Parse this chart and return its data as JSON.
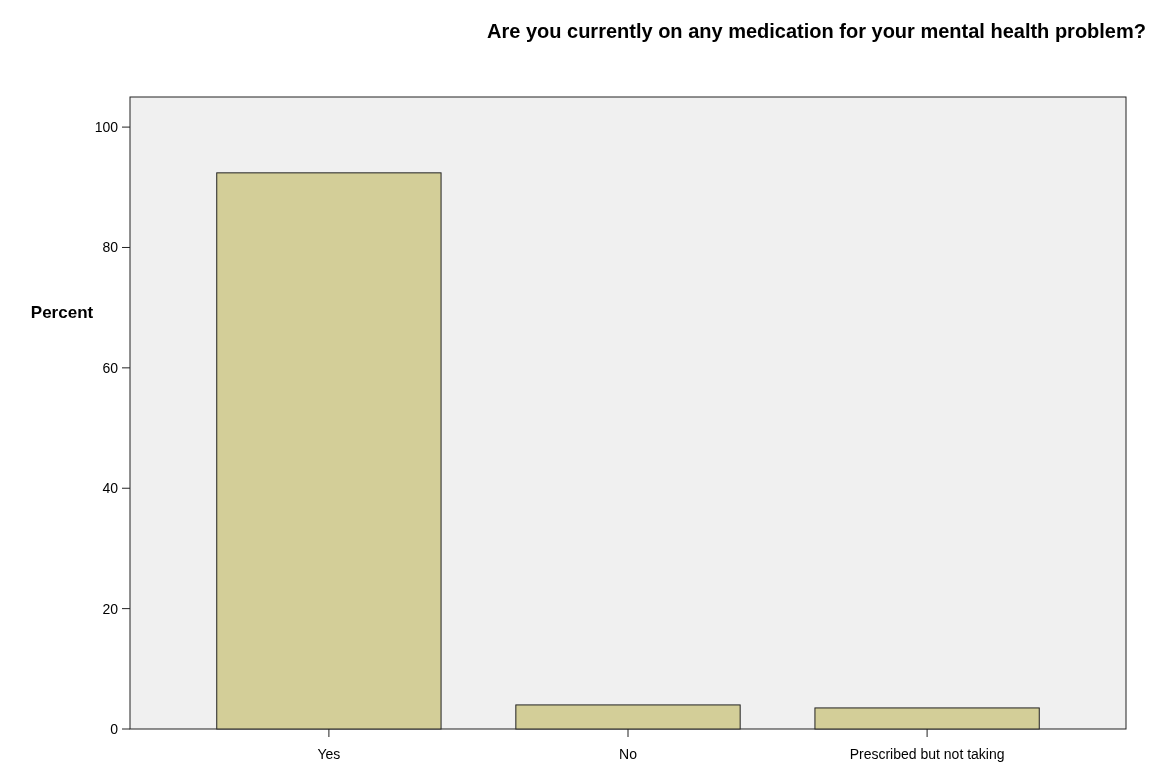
{
  "chart_data": {
    "type": "bar",
    "title": "Are you currently on any medication for your mental health problem?",
    "ylabel": "Percent",
    "categories": [
      "Yes",
      "No",
      "Prescribed but not taking"
    ],
    "values": [
      92.4,
      4.0,
      3.5
    ],
    "color": "#d3ce98",
    "ylim": [
      0,
      105
    ],
    "yticks": [
      0,
      20,
      40,
      60,
      80,
      100
    ],
    "grid": false
  }
}
